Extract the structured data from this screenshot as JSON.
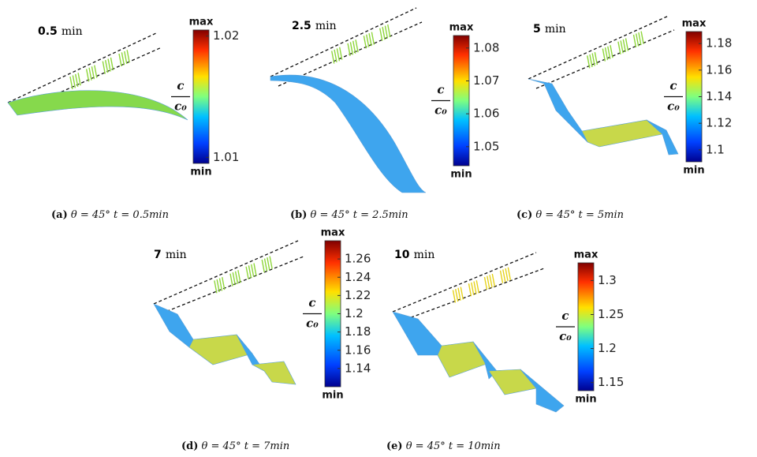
{
  "panels": [
    {
      "time_value": "0.5",
      "time_unit": "min",
      "max_label": "max",
      "min_label": "min",
      "numerator": "c",
      "denominator": "c₀",
      "range": [
        1.0095,
        1.0205
      ],
      "ticks": [
        1.02,
        1.01
      ],
      "caption_label": "(a)",
      "caption_angle": "θ = 45°",
      "caption_time": "t = 0.5min"
    },
    {
      "time_value": "2.5",
      "time_unit": "min",
      "max_label": "max",
      "min_label": "min",
      "numerator": "c",
      "denominator": "c₀",
      "range": [
        1.0442,
        1.0838
      ],
      "ticks": [
        1.08,
        1.07,
        1.06,
        1.05
      ],
      "caption_label": "(b)",
      "caption_angle": "θ = 45°",
      "caption_time": "t = 2.5min"
    },
    {
      "time_value": "5",
      "time_unit": "min",
      "max_label": "max",
      "min_label": "min",
      "numerator": "c",
      "denominator": "c₀",
      "range": [
        1.091,
        1.189
      ],
      "ticks": [
        1.18,
        1.16,
        1.14,
        1.12,
        1.1
      ],
      "caption_label": "(c)",
      "caption_angle": "θ = 45°",
      "caption_time": "t = 5min"
    },
    {
      "time_value": "7",
      "time_unit": "min",
      "max_label": "max",
      "min_label": "min",
      "numerator": "c",
      "denominator": "c₀",
      "range": [
        1.12,
        1.28
      ],
      "ticks": [
        1.26,
        1.24,
        1.22,
        1.2,
        1.18,
        1.16,
        1.14
      ],
      "caption_label": "(d)",
      "caption_angle": "θ = 45°",
      "caption_time": "t = 7min"
    },
    {
      "time_value": "10",
      "time_unit": "min",
      "max_label": "max",
      "min_label": "min",
      "numerator": "c",
      "denominator": "c₀",
      "range": [
        1.138,
        1.326
      ],
      "ticks": [
        1.3,
        1.25,
        1.2,
        1.15
      ],
      "caption_label": "(e)",
      "caption_angle": "θ = 45°",
      "caption_time": "t = 10min"
    }
  ]
}
